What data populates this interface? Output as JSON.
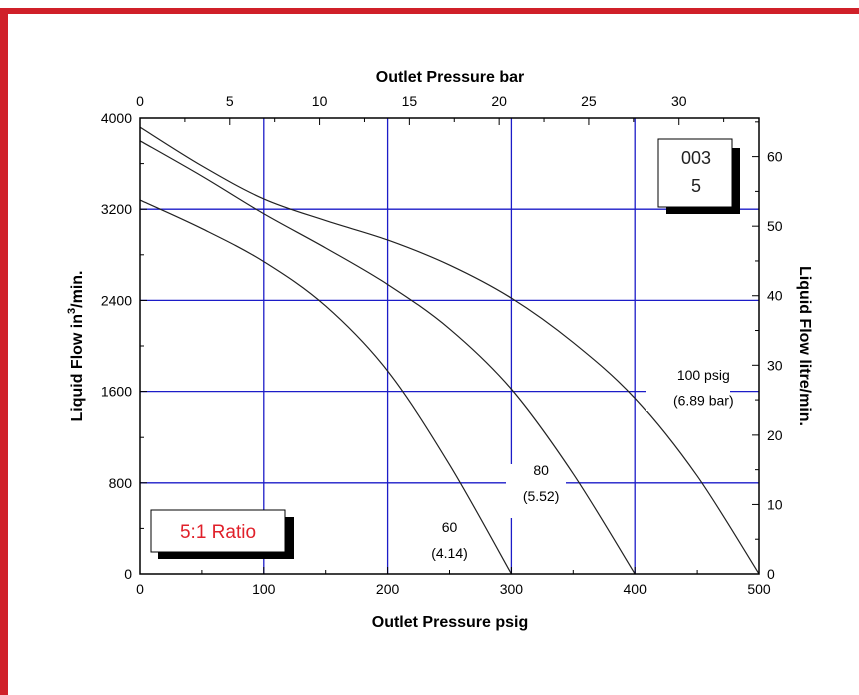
{
  "colors": {
    "frame": "#d02029",
    "grid": "#1c1cc8",
    "curve": "#222222",
    "ratio_text": "#e0202a"
  },
  "chart_data": {
    "type": "line",
    "xlabel": "Outlet Pressure psig",
    "ylabel": "Liquid Flow in³/min.",
    "ylabel_parts": {
      "main": "Liquid Flow in",
      "sup": "3",
      "tail": "/min."
    },
    "x2label": "Outlet Pressure bar",
    "y2label": "Liquid Flow litre/min.",
    "xlim": [
      0,
      500
    ],
    "ylim": [
      0,
      4000
    ],
    "x2lim": [
      0,
      34.47
    ],
    "y2lim": [
      0,
      65.55
    ],
    "x_ticks": [
      0,
      100,
      200,
      300,
      400,
      500
    ],
    "y_ticks": [
      0,
      800,
      1600,
      2400,
      3200,
      4000
    ],
    "x2_ticks": [
      0,
      5,
      10,
      15,
      20,
      25,
      30
    ],
    "y2_ticks": [
      0,
      10,
      20,
      30,
      40,
      50,
      60
    ],
    "x_grid": [
      100,
      200,
      300,
      400
    ],
    "y_grid": [
      800,
      1600,
      2400,
      3200
    ],
    "grid": true,
    "series": [
      {
        "name": "100 psig",
        "x": [
          0,
          50,
          100,
          150,
          200,
          250,
          300,
          350,
          400,
          450,
          500
        ],
        "y": [
          3920,
          3580,
          3290,
          3100,
          2930,
          2710,
          2420,
          2030,
          1540,
          860,
          0
        ]
      },
      {
        "name": "80",
        "x": [
          0,
          50,
          100,
          150,
          200,
          250,
          300,
          350,
          400
        ],
        "y": [
          3800,
          3490,
          3160,
          2860,
          2540,
          2150,
          1620,
          880,
          0
        ]
      },
      {
        "name": "60",
        "x": [
          0,
          50,
          100,
          150,
          200,
          250,
          300
        ],
        "y": [
          3280,
          3030,
          2740,
          2350,
          1780,
          960,
          0
        ]
      }
    ],
    "annotations": [
      {
        "key": "p100a",
        "text": "100 psig",
        "x": 455,
        "y": 1700
      },
      {
        "key": "p100b",
        "text": "(6.89 bar)",
        "x": 455,
        "y": 1480
      },
      {
        "key": "p80a",
        "text": "80",
        "x": 324,
        "y": 870
      },
      {
        "key": "p80b",
        "text": "(5.52)",
        "x": 324,
        "y": 640
      },
      {
        "key": "p60a",
        "text": "60",
        "x": 250,
        "y": 370
      },
      {
        "key": "p60b",
        "text": "(4.14)",
        "x": 250,
        "y": 140
      }
    ],
    "code_box": {
      "line1": "003",
      "line2": "5"
    },
    "ratio_label": "5:1 Ratio"
  }
}
